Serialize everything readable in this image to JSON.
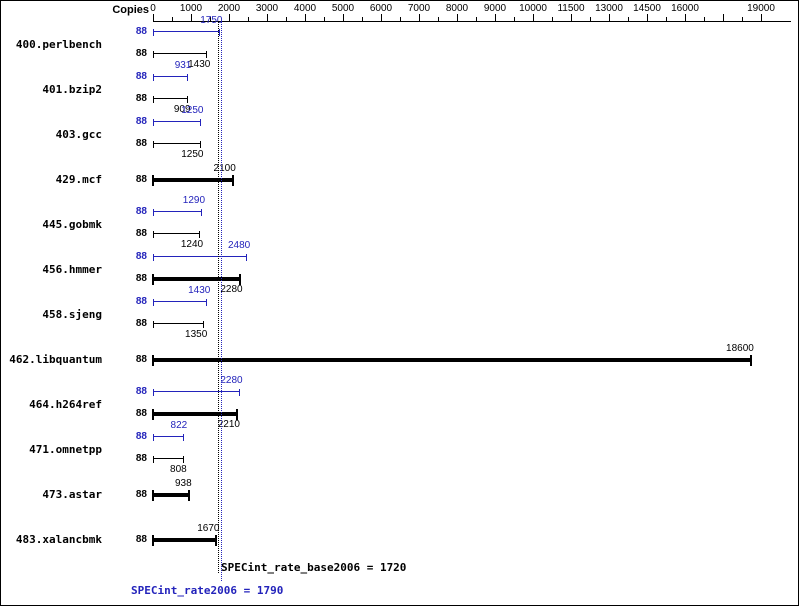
{
  "header": {
    "copies_label": "Copies"
  },
  "colors": {
    "peak_blue": "#2323bb",
    "black": "#000000"
  },
  "footer": {
    "base_label": "SPECint_rate_base2006 = 1720",
    "peak_label": "SPECint_rate2006 = 1790"
  },
  "chart_data": {
    "type": "bar",
    "orientation": "horizontal",
    "copies_column_header": "Copies",
    "x_axis": {
      "ticks": [
        {
          "value": 0,
          "label": "0"
        },
        {
          "value": 1000,
          "label": "1000"
        },
        {
          "value": 2000,
          "label": "2000"
        },
        {
          "value": 3000,
          "label": "3000"
        },
        {
          "value": 4000,
          "label": "4000"
        },
        {
          "value": 5000,
          "label": "5000"
        },
        {
          "value": 6000,
          "label": "6000"
        },
        {
          "value": 7000,
          "label": "7000"
        },
        {
          "value": 8000,
          "label": "8000"
        },
        {
          "value": 9000,
          "label": "9000"
        },
        {
          "value": 10000,
          "label": "10000"
        },
        {
          "value": 11500,
          "label": "11500"
        },
        {
          "value": 13000,
          "label": "13000"
        },
        {
          "value": 14500,
          "label": "14500"
        },
        {
          "value": 16000,
          "label": "16000"
        },
        {
          "value": 17500,
          "label": ""
        },
        {
          "value": 19000,
          "label": "19000"
        }
      ],
      "scale": "linear 0-10000, compressed above 10000 (1500 per step)"
    },
    "benchmarks": [
      {
        "name": "400.perlbench",
        "rows": [
          {
            "kind": "peak",
            "copies": "88",
            "value": 1750,
            "bold": false,
            "value_label_pos": "above"
          },
          {
            "kind": "base",
            "copies": "88",
            "value": 1430,
            "bold": false,
            "value_label_pos": "below"
          }
        ]
      },
      {
        "name": "401.bzip2",
        "rows": [
          {
            "kind": "peak",
            "copies": "88",
            "value": 931,
            "bold": false,
            "value_label_pos": "above"
          },
          {
            "kind": "base",
            "copies": "88",
            "value": 909,
            "bold": false,
            "value_label_pos": "below"
          }
        ]
      },
      {
        "name": "403.gcc",
        "rows": [
          {
            "kind": "peak",
            "copies": "88",
            "value": 1250,
            "bold": false,
            "value_label_pos": "above"
          },
          {
            "kind": "base",
            "copies": "88",
            "value": 1250,
            "bold": false,
            "value_label_pos": "below"
          }
        ]
      },
      {
        "name": "429.mcf",
        "rows": [
          {
            "kind": "base",
            "copies": "88",
            "value": 2100,
            "bold": true,
            "value_label_pos": "above"
          }
        ]
      },
      {
        "name": "445.gobmk",
        "rows": [
          {
            "kind": "peak",
            "copies": "88",
            "value": 1290,
            "bold": false,
            "value_label_pos": "above"
          },
          {
            "kind": "base",
            "copies": "88",
            "value": 1240,
            "bold": false,
            "value_label_pos": "below"
          }
        ]
      },
      {
        "name": "456.hmmer",
        "rows": [
          {
            "kind": "peak",
            "copies": "88",
            "value": 2480,
            "bold": false,
            "value_label_pos": "above"
          },
          {
            "kind": "base",
            "copies": "88",
            "value": 2280,
            "bold": true,
            "value_label_pos": "below"
          }
        ]
      },
      {
        "name": "458.sjeng",
        "rows": [
          {
            "kind": "peak",
            "copies": "88",
            "value": 1430,
            "bold": false,
            "value_label_pos": "above"
          },
          {
            "kind": "base",
            "copies": "88",
            "value": 1350,
            "bold": false,
            "value_label_pos": "below"
          }
        ]
      },
      {
        "name": "462.libquantum",
        "rows": [
          {
            "kind": "base",
            "copies": "88",
            "value": 18600,
            "bold": true,
            "value_label_pos": "above"
          }
        ]
      },
      {
        "name": "464.h264ref",
        "rows": [
          {
            "kind": "peak",
            "copies": "88",
            "value": 2280,
            "bold": false,
            "value_label_pos": "above"
          },
          {
            "kind": "base",
            "copies": "88",
            "value": 2210,
            "bold": true,
            "value_label_pos": "below"
          }
        ]
      },
      {
        "name": "471.omnetpp",
        "rows": [
          {
            "kind": "peak",
            "copies": "88",
            "value": 822,
            "bold": false,
            "value_label_pos": "above"
          },
          {
            "kind": "base",
            "copies": "88",
            "value": 808,
            "bold": false,
            "value_label_pos": "below"
          }
        ]
      },
      {
        "name": "473.astar",
        "rows": [
          {
            "kind": "base",
            "copies": "88",
            "value": 938,
            "bold": true,
            "value_label_pos": "above"
          }
        ]
      },
      {
        "name": "483.xalancbmk",
        "rows": [
          {
            "kind": "base",
            "copies": "88",
            "value": 1670,
            "bold": true,
            "value_label_pos": "above"
          }
        ]
      }
    ],
    "reference_lines": [
      {
        "name": "SPECint_rate_base2006",
        "value": 1720,
        "color": "black",
        "label": "SPECint_rate_base2006 = 1720"
      },
      {
        "name": "SPECint_rate2006",
        "value": 1790,
        "color": "blue",
        "label": "SPECint_rate2006 = 1790"
      }
    ]
  }
}
